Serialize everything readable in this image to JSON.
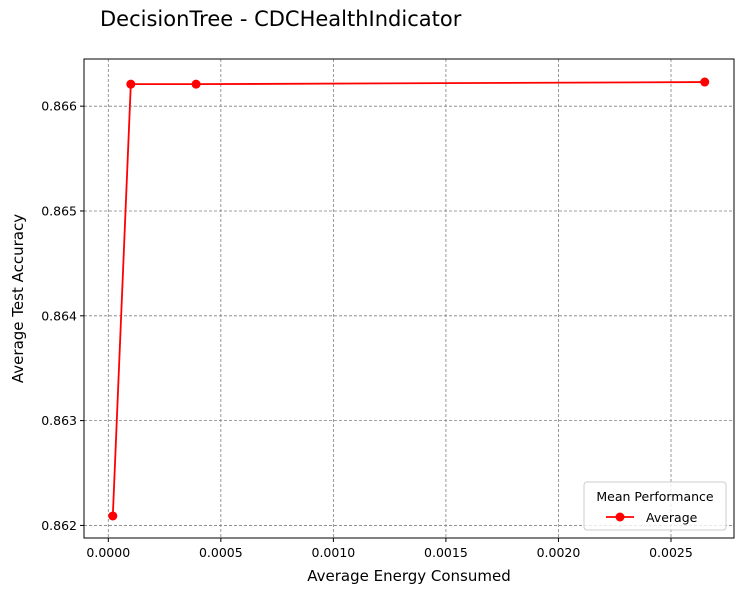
{
  "chart_data": {
    "type": "line",
    "title": "DecisionTree - CDCHealthIndicator",
    "xlabel": "Average Energy Consumed",
    "ylabel": "Average Test Accuracy",
    "xlim": [
      -0.000108,
      0.00278
    ],
    "ylim": [
      0.86188,
      0.86645
    ],
    "xticks": [
      0.0,
      0.0005,
      0.001,
      0.0015,
      0.002,
      0.0025
    ],
    "xtick_labels": [
      "0.0000",
      "0.0005",
      "0.0010",
      "0.0015",
      "0.0020",
      "0.0025"
    ],
    "yticks": [
      0.862,
      0.863,
      0.864,
      0.865,
      0.866
    ],
    "ytick_labels": [
      "0.862",
      "0.863",
      "0.864",
      "0.865",
      "0.866"
    ],
    "grid": true,
    "legend": {
      "title": "Mean Performance",
      "placement": "lower-right"
    },
    "series": [
      {
        "name": "Average",
        "color": "#ff0000",
        "marker": "circle",
        "x": [
          2e-05,
          0.0001,
          0.00039,
          0.00265
        ],
        "y": [
          0.86209,
          0.86621,
          0.86621,
          0.86623
        ]
      }
    ]
  }
}
